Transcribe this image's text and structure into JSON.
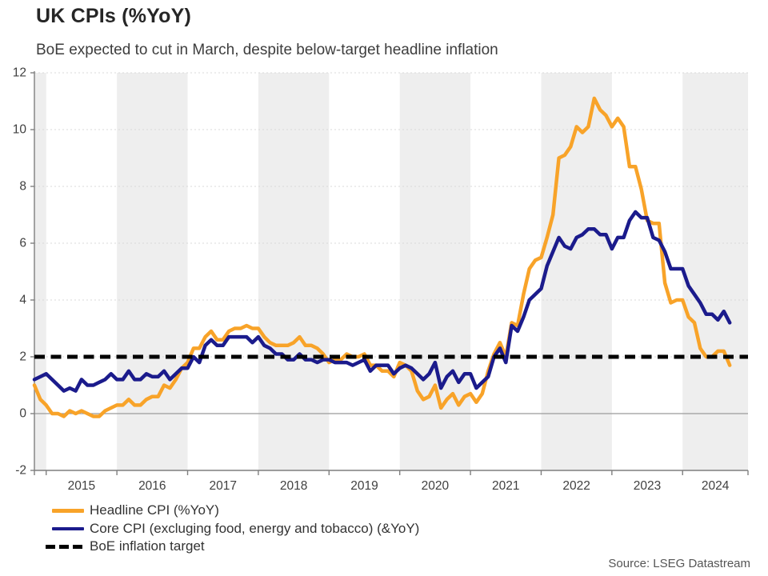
{
  "header": {
    "title": "UK CPIs (%YoY)",
    "subtitle": "BoE expected to cut in March, despite below-target headline inflation"
  },
  "source": "Source: LSEG Datastream",
  "chart_data": {
    "type": "line",
    "title": "UK CPIs (%YoY)",
    "x_start": {
      "year": 2014,
      "month": 11
    },
    "x_end": {
      "year": 2024,
      "month": 9
    },
    "x_frequency": "monthly",
    "xlim": [
      2014.8333,
      2024.925
    ],
    "ylim": [
      -2,
      12
    ],
    "y_ticks": [
      -2,
      0,
      2,
      4,
      6,
      8,
      10,
      12
    ],
    "x_tick_years": [
      2015,
      2016,
      2017,
      2018,
      2019,
      2020,
      2021,
      2022,
      2023,
      2024
    ],
    "x_tick_labels": [
      "2015",
      "2016",
      "2017",
      "2018",
      "2019",
      "2020",
      "2021",
      "2022",
      "2023",
      "2024"
    ],
    "shaded_years": [
      2014,
      2016,
      2018,
      2020,
      2022,
      2024
    ],
    "grid": "horizontal dotted gridlines, alternating calendar-year gray bands, solid zero line",
    "legend_position": "bottom-left",
    "target_line": {
      "label": "BoE inflation target",
      "value": 2,
      "color": "#000000",
      "style": "dashed"
    },
    "series": [
      {
        "name": "Headline CPI (%YoY)",
        "color": "#F8A329",
        "values": [
          1.0,
          0.5,
          0.3,
          0.0,
          0.0,
          -0.1,
          0.1,
          0.0,
          0.1,
          0.0,
          -0.1,
          -0.1,
          0.1,
          0.2,
          0.3,
          0.3,
          0.5,
          0.3,
          0.3,
          0.5,
          0.6,
          0.6,
          1.0,
          0.9,
          1.2,
          1.6,
          1.8,
          2.3,
          2.3,
          2.7,
          2.9,
          2.6,
          2.6,
          2.9,
          3.0,
          3.0,
          3.1,
          3.0,
          3.0,
          2.7,
          2.5,
          2.4,
          2.4,
          2.4,
          2.5,
          2.7,
          2.4,
          2.4,
          2.3,
          2.1,
          1.8,
          1.9,
          1.9,
          2.1,
          2.0,
          2.0,
          2.1,
          1.7,
          1.7,
          1.5,
          1.5,
          1.3,
          1.8,
          1.7,
          1.5,
          0.8,
          0.5,
          0.6,
          1.0,
          0.2,
          0.5,
          0.7,
          0.3,
          0.6,
          0.7,
          0.4,
          0.7,
          1.5,
          2.1,
          2.5,
          2.0,
          3.2,
          3.1,
          4.2,
          5.1,
          5.4,
          5.5,
          6.2,
          7.0,
          9.0,
          9.1,
          9.4,
          10.1,
          9.9,
          10.1,
          11.1,
          10.7,
          10.5,
          10.1,
          10.4,
          10.1,
          8.7,
          8.7,
          7.9,
          6.8,
          6.7,
          6.7,
          4.6,
          3.9,
          4.0,
          4.0,
          3.4,
          3.2,
          2.3,
          2.0,
          2.0,
          2.2,
          2.2,
          1.7
        ]
      },
      {
        "name": "Core CPI (excluging food, energy and tobacco) (&YoY)",
        "color": "#1B1B8C",
        "values": [
          1.2,
          1.3,
          1.4,
          1.2,
          1.0,
          0.8,
          0.9,
          0.8,
          1.2,
          1.0,
          1.0,
          1.1,
          1.2,
          1.4,
          1.2,
          1.2,
          1.5,
          1.2,
          1.2,
          1.4,
          1.3,
          1.3,
          1.5,
          1.2,
          1.4,
          1.6,
          1.6,
          2.0,
          1.8,
          2.4,
          2.6,
          2.4,
          2.4,
          2.7,
          2.7,
          2.7,
          2.7,
          2.5,
          2.7,
          2.4,
          2.3,
          2.1,
          2.1,
          1.9,
          1.9,
          2.1,
          1.9,
          1.9,
          1.8,
          1.9,
          1.9,
          1.8,
          1.8,
          1.8,
          1.7,
          1.8,
          1.9,
          1.5,
          1.7,
          1.7,
          1.7,
          1.4,
          1.6,
          1.7,
          1.6,
          1.4,
          1.2,
          1.4,
          1.8,
          0.9,
          1.3,
          1.5,
          1.1,
          1.4,
          1.4,
          0.9,
          1.1,
          1.3,
          2.0,
          2.3,
          1.8,
          3.1,
          2.9,
          3.4,
          4.0,
          4.2,
          4.4,
          5.2,
          5.7,
          6.2,
          5.9,
          5.8,
          6.2,
          6.3,
          6.5,
          6.5,
          6.3,
          6.3,
          5.8,
          6.2,
          6.2,
          6.8,
          7.1,
          6.9,
          6.9,
          6.2,
          6.1,
          5.7,
          5.1,
          5.1,
          5.1,
          4.5,
          4.2,
          3.9,
          3.5,
          3.5,
          3.3,
          3.6,
          3.2
        ]
      }
    ],
    "colors": {
      "band": "#EEEEEE",
      "gridline": "#D8D8D8",
      "zero_line": "#9B9B9B",
      "axis": "#7F7F7F",
      "tick_label": "#404040"
    }
  }
}
